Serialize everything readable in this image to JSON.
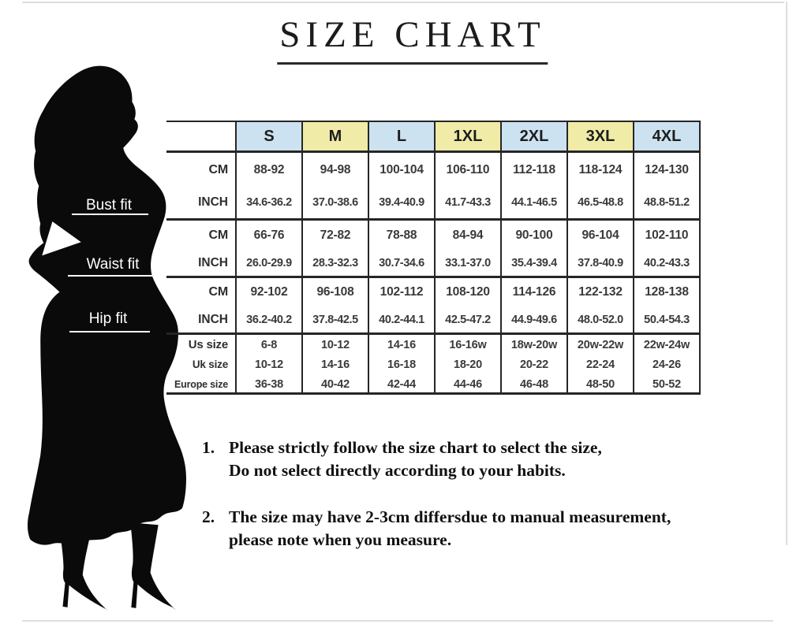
{
  "page": {
    "title": "SIZE CHART"
  },
  "colors": {
    "accent_blue": "#cde2f0",
    "accent_yellow": "#f0eca8",
    "silhouette": "#0a0a0a"
  },
  "measurement_labels": {
    "bust": "Bust fit",
    "waist": "Waist fit",
    "hip": "Hip fit"
  },
  "size_table": {
    "columns": [
      "S",
      "M",
      "L",
      "1XL",
      "2XL",
      "3XL",
      "4XL"
    ],
    "row_groups": [
      {
        "name": "bust",
        "rows": [
          {
            "label": "CM",
            "values": [
              "88-92",
              "94-98",
              "100-104",
              "106-110",
              "112-118",
              "118-124",
              "124-130"
            ]
          },
          {
            "label": "INCH",
            "values": [
              "34.6-36.2",
              "37.0-38.6",
              "39.4-40.9",
              "41.7-43.3",
              "44.1-46.5",
              "46.5-48.8",
              "48.8-51.2"
            ]
          }
        ]
      },
      {
        "name": "waist",
        "rows": [
          {
            "label": "CM",
            "values": [
              "66-76",
              "72-82",
              "78-88",
              "84-94",
              "90-100",
              "96-104",
              "102-110"
            ]
          },
          {
            "label": "INCH",
            "values": [
              "26.0-29.9",
              "28.3-32.3",
              "30.7-34.6",
              "33.1-37.0",
              "35.4-39.4",
              "37.8-40.9",
              "40.2-43.3"
            ]
          }
        ]
      },
      {
        "name": "hip",
        "rows": [
          {
            "label": "CM",
            "values": [
              "92-102",
              "96-108",
              "102-112",
              "108-120",
              "114-126",
              "122-132",
              "128-138"
            ]
          },
          {
            "label": "INCH",
            "values": [
              "36.2-40.2",
              "37.8-42.5",
              "40.2-44.1",
              "42.5-47.2",
              "44.9-49.6",
              "48.0-52.0",
              "50.4-54.3"
            ]
          }
        ]
      },
      {
        "name": "sizes",
        "rows": [
          {
            "label": "Us size",
            "values": [
              "6-8",
              "10-12",
              "14-16",
              "16-16w",
              "18w-20w",
              "20w-22w",
              "22w-24w"
            ]
          },
          {
            "label": "Uk size",
            "values": [
              "10-12",
              "14-16",
              "16-18",
              "18-20",
              "20-22",
              "22-24",
              "24-26"
            ]
          },
          {
            "label": "Europe size",
            "values": [
              "36-38",
              "40-42",
              "42-44",
              "44-46",
              "46-48",
              "48-50",
              "50-52"
            ]
          }
        ]
      }
    ]
  },
  "notes": [
    {
      "number": "1.",
      "lines": [
        "Please strictly follow the size chart to select the size,",
        "Do not select directly according to your habits."
      ]
    },
    {
      "number": "2.",
      "lines": [
        "The size may have 2-3cm differsdue to manual measurement,",
        "please note when you measure."
      ]
    }
  ]
}
